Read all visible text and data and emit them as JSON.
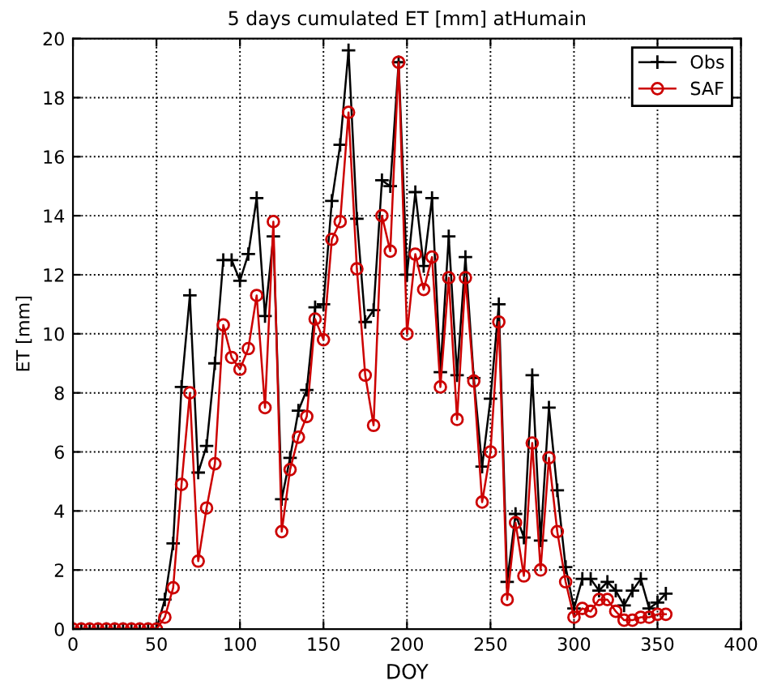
{
  "chart_data": {
    "type": "line",
    "title": "5 days cumulated ET [mm] atHumain",
    "xlabel": "DOY",
    "ylabel": "ET [mm]",
    "x": [
      0,
      5,
      10,
      15,
      20,
      25,
      30,
      35,
      40,
      45,
      50,
      55,
      60,
      65,
      70,
      75,
      80,
      85,
      90,
      95,
      100,
      105,
      110,
      115,
      120,
      125,
      130,
      135,
      140,
      145,
      150,
      155,
      160,
      165,
      170,
      175,
      180,
      185,
      190,
      195,
      200,
      205,
      210,
      215,
      220,
      225,
      230,
      235,
      240,
      245,
      250,
      255,
      260,
      265,
      270,
      275,
      280,
      285,
      290,
      295,
      300,
      305,
      310,
      315,
      320,
      325,
      330,
      335,
      340,
      345,
      350,
      355
    ],
    "series": [
      {
        "name": "Obs",
        "color": "#000000",
        "marker": "cross",
        "values": [
          0,
          0,
          0,
          0,
          0,
          0,
          0,
          0,
          0,
          0,
          0,
          1.0,
          2.9,
          8.2,
          11.3,
          5.3,
          6.2,
          9.0,
          12.5,
          12.5,
          11.8,
          12.7,
          14.6,
          10.6,
          13.3,
          4.4,
          5.8,
          7.4,
          8.1,
          10.9,
          11.0,
          14.5,
          16.4,
          19.6,
          13.9,
          10.4,
          10.8,
          15.2,
          15.0,
          19.2,
          12.0,
          14.8,
          12.3,
          14.6,
          8.7,
          13.3,
          8.6,
          12.6,
          8.5,
          5.5,
          7.8,
          11.0,
          1.6,
          3.9,
          3.1,
          8.6,
          3.0,
          7.5,
          4.7,
          2.1,
          0.7,
          1.7,
          1.7,
          1.3,
          1.6,
          1.3,
          0.8,
          1.3,
          1.7,
          0.7,
          0.9,
          1.2
        ]
      },
      {
        "name": "SAF",
        "color": "#cc0000",
        "marker": "circle",
        "values": [
          0,
          0,
          0,
          0,
          0,
          0,
          0,
          0,
          0,
          0,
          0,
          0.4,
          1.4,
          4.9,
          8.0,
          2.3,
          4.1,
          5.6,
          10.3,
          9.2,
          8.8,
          9.5,
          11.3,
          7.5,
          13.8,
          3.3,
          5.4,
          6.5,
          7.2,
          10.5,
          9.8,
          13.2,
          13.8,
          17.5,
          12.2,
          8.6,
          6.9,
          14.0,
          12.8,
          19.2,
          10.0,
          12.7,
          11.5,
          12.6,
          8.2,
          11.9,
          7.1,
          11.9,
          8.4,
          4.3,
          6.0,
          10.4,
          1.0,
          3.6,
          1.8,
          6.3,
          2.0,
          5.8,
          3.3,
          1.6,
          0.4,
          0.7,
          0.6,
          1.0,
          1.0,
          0.6,
          0.3,
          0.3,
          0.4,
          0.4,
          0.5,
          0.5
        ]
      }
    ],
    "xlim": [
      0,
      400
    ],
    "xticks": [
      0,
      50,
      100,
      150,
      200,
      250,
      300,
      350,
      400
    ],
    "ylim": [
      0,
      20
    ],
    "yticks": [
      0,
      2,
      4,
      6,
      8,
      10,
      12,
      14,
      16,
      18,
      20
    ],
    "grid": true,
    "legend": "top right",
    "line_style": "solid"
  }
}
